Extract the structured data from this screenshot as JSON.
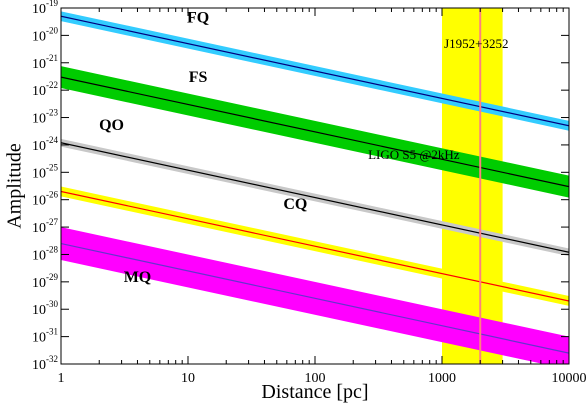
{
  "chart_data": {
    "type": "line",
    "title": "",
    "xlabel": "Distance [pc]",
    "ylabel": "Amplitude",
    "xscale": "log",
    "yscale": "log",
    "xlim": [
      1,
      10000
    ],
    "ylim": [
      1e-32,
      1e-19
    ],
    "x_ticks": [
      1,
      10,
      100,
      1000,
      10000
    ],
    "x_tick_labels": [
      "1",
      "10",
      "100",
      "1000",
      "10000"
    ],
    "y_tick_exponents": [
      -19,
      -20,
      -21,
      -22,
      -23,
      -24,
      -25,
      -26,
      -27,
      -28,
      -29,
      -30,
      -31,
      -32
    ],
    "series": [
      {
        "name": "FQ",
        "line_color": "#000080",
        "band_color": "#33ccff",
        "center": [
          [
            1,
            5e-20
          ],
          [
            10000,
            5e-24
          ]
        ],
        "band_halfwidth_dex": 0.18
      },
      {
        "name": "FS",
        "line_color": "#000000",
        "band_color": "#00cc00",
        "center": [
          [
            1,
            3e-22
          ],
          [
            10000,
            3e-26
          ]
        ],
        "band_halfwidth_dex": 0.4
      },
      {
        "name": "QO",
        "line_color": "#000000",
        "band_color": "#c8c8c8",
        "center": [
          [
            1,
            1.2e-24
          ],
          [
            10000,
            1.2e-28
          ]
        ],
        "band_halfwidth_dex": 0.14
      },
      {
        "name": "CQ",
        "line_color": "#ff0000",
        "band_color": "#ffff00",
        "center": [
          [
            1,
            2e-26
          ],
          [
            10000,
            2e-30
          ]
        ],
        "band_halfwidth_dex": 0.18
      },
      {
        "name": "MQ",
        "line_color": "#6633cc",
        "band_color": "#ff00ff",
        "center": [
          [
            1,
            2.5e-28
          ],
          [
            10000,
            2.5e-32
          ]
        ],
        "band_halfwidth_dex": 0.6
      }
    ],
    "region": {
      "label": "J1952+3252",
      "x_min": 1000,
      "x_max": 3000,
      "x_center": 2000,
      "fill_color": "#ffff00",
      "line_color": "#ff8080"
    },
    "annotations": [
      {
        "text": "LIGO S5 @2kHz",
        "x": 600,
        "y": 3e-25
      }
    ],
    "band_label_positions": [
      {
        "name": "FQ",
        "x": 12,
        "y": 3e-20
      },
      {
        "name": "FS",
        "x": 12,
        "y": 2e-22
      },
      {
        "name": "QO",
        "x": 2.5,
        "y": 3.5e-24
      },
      {
        "name": "CQ",
        "x": 70,
        "y": 4.5e-27
      },
      {
        "name": "MQ",
        "x": 4,
        "y": 1e-29
      }
    ]
  }
}
